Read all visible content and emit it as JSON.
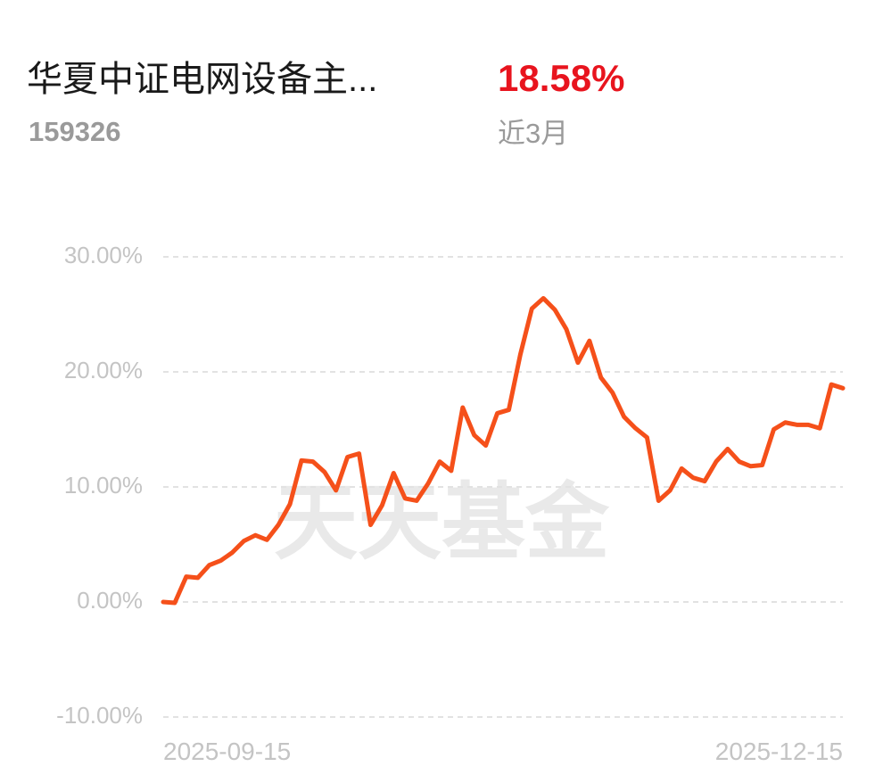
{
  "header": {
    "fund_name": "华夏中证电网设备主...",
    "fund_code": "159326",
    "return": "18.58%",
    "period": "近3月"
  },
  "chart_data": {
    "type": "line",
    "watermark": "天天基金",
    "categories": [
      "2025-09-15",
      null,
      null,
      null,
      null,
      null,
      null,
      null,
      null,
      null,
      null,
      null,
      null,
      null,
      null,
      null,
      null,
      null,
      null,
      null,
      null,
      null,
      null,
      null,
      null,
      null,
      null,
      null,
      null,
      null,
      null,
      null,
      null,
      null,
      null,
      null,
      null,
      null,
      null,
      null,
      null,
      null,
      null,
      null,
      null,
      null,
      null,
      null,
      null,
      null,
      null,
      null,
      null,
      null,
      null,
      null,
      null,
      null,
      null,
      "2025-12-15"
    ],
    "series": [
      {
        "color": "#f5501a",
        "values": [
          0,
          -0.08,
          2.2,
          2.1,
          3.2,
          3.6,
          4.3,
          5.3,
          5.8,
          5.4,
          6.7,
          8.5,
          12.3,
          12.2,
          11.3,
          9.7,
          12.6,
          12.9,
          6.7,
          8.4,
          11.2,
          9.0,
          8.8,
          10.3,
          12.2,
          11.4,
          16.9,
          14.5,
          13.6,
          16.4,
          16.7,
          21.5,
          25.5,
          26.4,
          25.4,
          23.7,
          20.8,
          22.7,
          19.5,
          18.2,
          16.1,
          15.1,
          14.3,
          8.8,
          9.7,
          11.6,
          10.8,
          10.5,
          12.2,
          13.3,
          12.2,
          11.8,
          11.9,
          15.0,
          15.6,
          15.4,
          15.4,
          15.1,
          18.9,
          18.58
        ]
      }
    ],
    "ylim": [
      -10,
      30
    ],
    "yticks": [
      {
        "value": -10,
        "label": "-10.00%"
      },
      {
        "value": 0,
        "label": "0.00%"
      },
      {
        "value": 10,
        "label": "10.00%"
      },
      {
        "value": 20,
        "label": "20.00%"
      },
      {
        "value": 30,
        "label": "30.00%"
      }
    ],
    "grid": true
  }
}
